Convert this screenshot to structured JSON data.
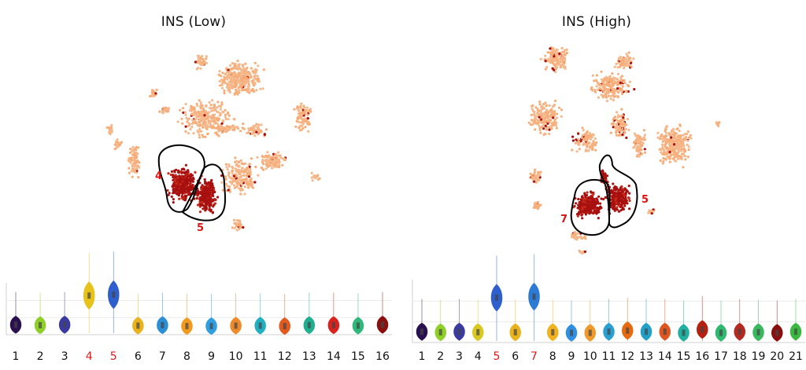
{
  "colors": {
    "low_expr": "#f7ad78",
    "low_expr_2": "#f5b98e",
    "high_expr": "#a81010",
    "outline": "#000000",
    "highlight_label": "#e01818"
  },
  "chart_data": [
    {
      "type": "scatter",
      "title": "INS (Low)",
      "annotations": [
        {
          "text": "4"
        },
        {
          "text": "5"
        }
      ]
    },
    {
      "type": "violin",
      "categories": [
        "1",
        "2",
        "3",
        "4",
        "5",
        "6",
        "7",
        "8",
        "9",
        "10",
        "11",
        "12",
        "13",
        "14",
        "15",
        "16"
      ],
      "highlighted": [
        "4",
        "5"
      ],
      "values": [
        0.08,
        0.07,
        0.08,
        0.72,
        0.74,
        0.06,
        0.07,
        0.05,
        0.05,
        0.06,
        0.06,
        0.05,
        0.07,
        0.07,
        0.06,
        0.08
      ],
      "colors": [
        "#2b1050",
        "#8fd028",
        "#3a3aa0",
        "#e6c21a",
        "#2e5fcc",
        "#e8b31c",
        "#2a8fd6",
        "#f29a1e",
        "#2f9fe0",
        "#ef8a2a",
        "#22b0c0",
        "#e35a1f",
        "#1fb090",
        "#d8231f",
        "#2fb87a",
        "#8a0f0f"
      ]
    },
    {
      "type": "scatter",
      "title": "INS (High)",
      "annotations": [
        {
          "text": "7"
        },
        {
          "text": "5"
        }
      ]
    },
    {
      "type": "violin",
      "categories": [
        "1",
        "2",
        "3",
        "4",
        "5",
        "6",
        "7",
        "8",
        "9",
        "10",
        "11",
        "12",
        "13",
        "14",
        "15",
        "16",
        "17",
        "18",
        "19",
        "20",
        "21"
      ],
      "highlighted": [
        "5",
        "7"
      ],
      "values": [
        0.08,
        0.07,
        0.08,
        0.07,
        0.68,
        0.07,
        0.7,
        0.07,
        0.06,
        0.06,
        0.08,
        0.1,
        0.08,
        0.08,
        0.06,
        0.12,
        0.06,
        0.08,
        0.07,
        0.06,
        0.08
      ],
      "colors": [
        "#2b1050",
        "#8fd028",
        "#3a3aa0",
        "#d8c820",
        "#2e5fcc",
        "#e8b31c",
        "#2a7ad6",
        "#f2b21e",
        "#2f8fe0",
        "#ef9a2a",
        "#2a9fd0",
        "#e66b10",
        "#22a0c8",
        "#e0561f",
        "#1fb0a0",
        "#b52010",
        "#2fb870",
        "#b52a20",
        "#3ab860",
        "#8a0f0f",
        "#3ab840"
      ]
    }
  ]
}
